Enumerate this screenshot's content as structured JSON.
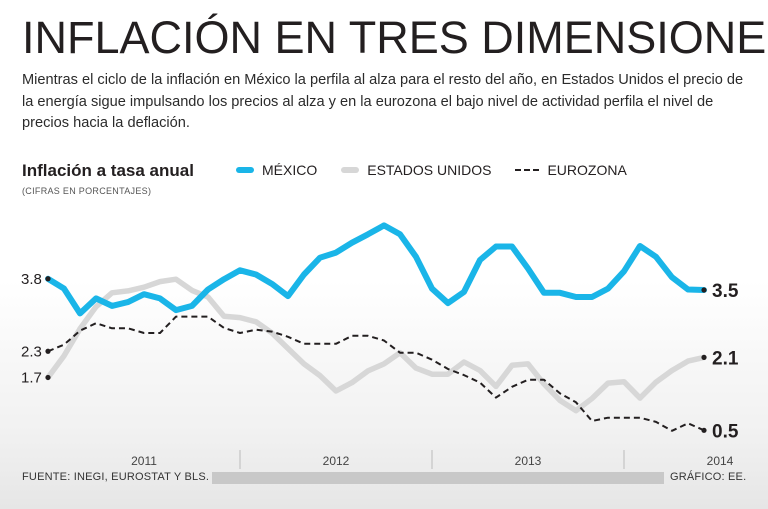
{
  "header": {
    "title": "INFLACIÓN EN TRES DIMENSIONES",
    "subtitle": "Mientras el ciclo de la inflación en México la perfila al alza para el resto del año, en Estados Unidos el precio de la energía sigue impulsando los precios al alza y en la eurozona el bajo nivel de actividad perfila el nivel de precios hacia la deflación."
  },
  "footer": {
    "source": "FUENTE: INEGI, EUROSTAT Y BLS.",
    "credit": "GRÁFICO: EE."
  },
  "colors": {
    "mexico": "#1ab5e8",
    "usa": "#d7d7d7",
    "eurozone": "#231f20",
    "text": "#231f20"
  },
  "chart_data": {
    "type": "line",
    "title": "Inflación a tasa anual",
    "units": "(CIFRAS EN PORCENTAJES)",
    "xlabel": "",
    "ylabel": "",
    "ylim": [
      0,
      5.6
    ],
    "x_ticks": [
      {
        "label": "2011",
        "index": 6
      },
      {
        "label": "2012",
        "index": 18
      },
      {
        "label": "2013",
        "index": 30
      },
      {
        "label": "2014",
        "index": 42
      }
    ],
    "grid": false,
    "legend_position": "top",
    "series": [
      {
        "key": "mexico",
        "name": "MÉXICO",
        "color": "#1ab5e8",
        "style": "solid-thick",
        "start_label": "3.8",
        "end_label": "3.5",
        "values": [
          3.78,
          3.57,
          3.04,
          3.36,
          3.2,
          3.28,
          3.45,
          3.36,
          3.11,
          3.2,
          3.55,
          3.77,
          3.96,
          3.87,
          3.67,
          3.41,
          3.87,
          4.23,
          4.34,
          4.55,
          4.73,
          4.92,
          4.73,
          4.25,
          3.57,
          3.26,
          3.5,
          4.18,
          4.47,
          4.47,
          4.0,
          3.48,
          3.48,
          3.39,
          3.39,
          3.57,
          3.94,
          4.48,
          4.25,
          3.81,
          3.55,
          3.54
        ]
      },
      {
        "key": "usa",
        "name": "ESTADOS UNIDOS",
        "color": "#d7d7d7",
        "style": "solid-thick",
        "start_label": "1.7",
        "end_label": "2.1",
        "values": [
          1.67,
          2.13,
          2.71,
          3.18,
          3.48,
          3.52,
          3.6,
          3.72,
          3.77,
          3.53,
          3.39,
          2.98,
          2.95,
          2.86,
          2.62,
          2.29,
          1.96,
          1.71,
          1.38,
          1.56,
          1.81,
          1.96,
          2.2,
          1.87,
          1.74,
          1.74,
          2.0,
          1.82,
          1.48,
          1.93,
          1.96,
          1.53,
          1.18,
          0.96,
          1.22,
          1.55,
          1.58,
          1.23,
          1.57,
          1.82,
          2.02,
          2.1
        ]
      },
      {
        "key": "eurozone",
        "name": "EUROZONA",
        "color": "#231f20",
        "style": "dashed",
        "start_label": "2.3",
        "end_label": "0.5",
        "values": [
          2.23,
          2.37,
          2.67,
          2.83,
          2.72,
          2.72,
          2.62,
          2.62,
          2.97,
          2.97,
          2.97,
          2.73,
          2.62,
          2.69,
          2.65,
          2.54,
          2.39,
          2.39,
          2.39,
          2.56,
          2.56,
          2.46,
          2.2,
          2.2,
          2.05,
          1.85,
          1.72,
          1.56,
          1.24,
          1.47,
          1.62,
          1.62,
          1.33,
          1.14,
          0.74,
          0.81,
          0.81,
          0.81,
          0.72,
          0.53,
          0.69,
          0.54
        ]
      }
    ]
  }
}
